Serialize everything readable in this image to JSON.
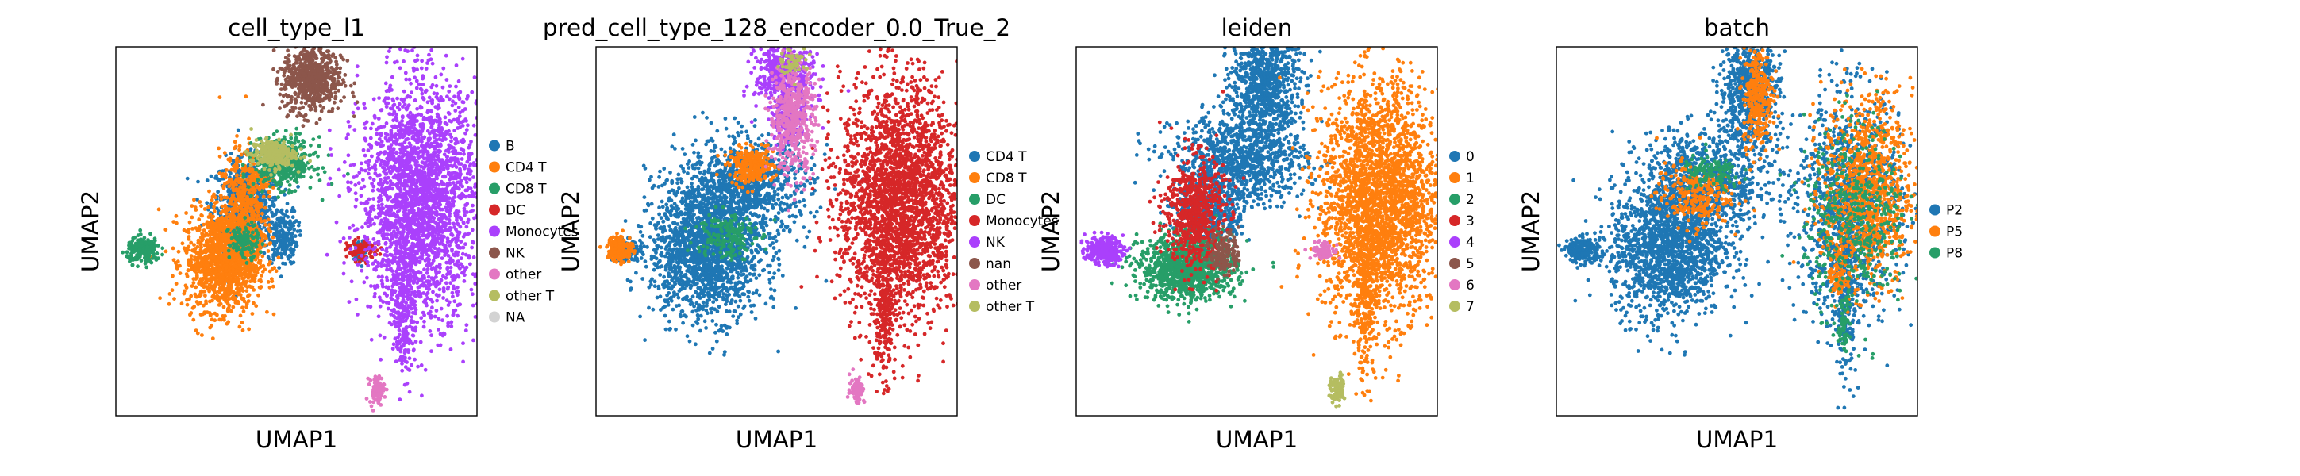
{
  "chart_data": [
    {
      "type": "scatter",
      "title": "cell_type_l1",
      "xlabel": "UMAP1",
      "ylabel": "UMAP2",
      "grid": false,
      "ticks": false,
      "legend_placement": "right-outside",
      "legend": [
        {
          "label": "B",
          "color": "#1f77b4"
        },
        {
          "label": "CD4 T",
          "color": "#ff7f0e"
        },
        {
          "label": "CD8 T",
          "color": "#279e68"
        },
        {
          "label": "DC",
          "color": "#d62728"
        },
        {
          "label": "Monocytes",
          "color": "#aa40fc"
        },
        {
          "label": "NK",
          "color": "#8c564b"
        },
        {
          "label": "other",
          "color": "#e377c2"
        },
        {
          "label": "other T",
          "color": "#b5bd61"
        },
        {
          "label": "NA",
          "color": "#d3d3d3"
        }
      ],
      "series": [
        {
          "category": 0,
          "regions": [
            [
              -3.0,
              2.0,
              0.9,
              1.3,
              650
            ],
            [
              -1.0,
              0.2,
              0.4,
              0.8,
              200
            ],
            [
              3.2,
              -0.7,
              0.15,
              0.3,
              80
            ]
          ]
        },
        {
          "category": 1,
          "regions": [
            [
              -4.3,
              -1.2,
              1.0,
              1.4,
              1100
            ],
            [
              -3.2,
              1.0,
              0.6,
              2.0,
              650
            ],
            [
              -2.2,
              3.4,
              0.3,
              0.3,
              80
            ]
          ]
        },
        {
          "category": 2,
          "regions": [
            [
              -8.5,
              -0.6,
              0.45,
              0.35,
              220
            ],
            [
              -0.9,
              4.4,
              0.8,
              0.7,
              420
            ],
            [
              -3.1,
              -0.1,
              0.4,
              0.5,
              120
            ]
          ]
        },
        {
          "category": 3,
          "regions": [
            [
              3.3,
              -0.6,
              0.4,
              0.3,
              100
            ]
          ]
        },
        {
          "category": 4,
          "regions": [
            [
              6.4,
              2.3,
              1.6,
              3.3,
              2600
            ],
            [
              5.6,
              -3.2,
              0.3,
              2.3,
              280
            ]
          ]
        },
        {
          "category": 5,
          "regions": [
            [
              0.6,
              9.2,
              0.8,
              1.0,
              650
            ]
          ]
        },
        {
          "category": 6,
          "regions": [
            [
              4.1,
              -8.5,
              0.2,
              0.4,
              90
            ]
          ]
        },
        {
          "category": 7,
          "regions": [
            [
              -1.5,
              4.9,
              0.6,
              0.4,
              260
            ]
          ]
        }
      ]
    },
    {
      "type": "scatter",
      "title": "pred_cell_type_128_encoder_0.0_True_2",
      "xlabel": "UMAP1",
      "ylabel": "UMAP2",
      "grid": false,
      "ticks": false,
      "legend_placement": "right-outside",
      "legend": [
        {
          "label": "CD4 T",
          "color": "#1f77b4"
        },
        {
          "label": "CD8 T",
          "color": "#ff7f0e"
        },
        {
          "label": "DC",
          "color": "#279e68"
        },
        {
          "label": "Monocytes",
          "color": "#d62728"
        },
        {
          "label": "NK",
          "color": "#aa40fc"
        },
        {
          "label": "nan",
          "color": "#8c564b"
        },
        {
          "label": "other",
          "color": "#e377c2"
        },
        {
          "label": "other T",
          "color": "#b5bd61"
        }
      ],
      "series": [
        {
          "category": 0,
          "regions": [
            [
              -4.0,
              -0.6,
              1.5,
              1.9,
              1700
            ],
            [
              -2.0,
              3.0,
              1.8,
              1.4,
              900
            ],
            [
              -8.3,
              -0.6,
              0.4,
              0.3,
              120
            ]
          ]
        },
        {
          "category": 1,
          "regions": [
            [
              -8.7,
              -0.5,
              0.35,
              0.4,
              160
            ],
            [
              -1.6,
              4.2,
              0.6,
              0.5,
              250
            ]
          ]
        },
        {
          "category": 2,
          "regions": [
            [
              -3.0,
              0.3,
              0.8,
              0.7,
              180
            ]
          ]
        },
        {
          "category": 3,
          "regions": [
            [
              6.4,
              2.3,
              1.6,
              3.3,
              2600
            ],
            [
              5.6,
              -3.2,
              0.3,
              2.3,
              280
            ]
          ]
        },
        {
          "category": 4,
          "regions": [
            [
              0.2,
              9.4,
              0.8,
              1.0,
              450
            ],
            [
              0.4,
              6.8,
              0.5,
              0.6,
              150
            ]
          ]
        },
        {
          "category": 6,
          "regions": [
            [
              0.6,
              7.0,
              0.6,
              1.6,
              500
            ],
            [
              4.1,
              -8.5,
              0.2,
              0.4,
              90
            ]
          ]
        },
        {
          "category": 7,
          "regions": [
            [
              0.7,
              10.2,
              0.4,
              0.4,
              60
            ]
          ]
        }
      ]
    },
    {
      "type": "scatter",
      "title": "leiden",
      "xlabel": "UMAP1",
      "ylabel": "UMAP2",
      "grid": false,
      "ticks": false,
      "legend_placement": "right-outside",
      "legend": [
        {
          "label": "0",
          "color": "#1f77b4"
        },
        {
          "label": "1",
          "color": "#ff7f0e"
        },
        {
          "label": "2",
          "color": "#279e68"
        },
        {
          "label": "3",
          "color": "#d62728"
        },
        {
          "label": "4",
          "color": "#aa40fc"
        },
        {
          "label": "5",
          "color": "#8c564b"
        },
        {
          "label": "6",
          "color": "#e377c2"
        },
        {
          "label": "7",
          "color": "#b5bd61"
        }
      ],
      "series": [
        {
          "category": 0,
          "regions": [
            [
              -1.2,
              4.5,
              1.8,
              1.3,
              1000
            ],
            [
              0.2,
              8.8,
              0.9,
              1.6,
              800
            ],
            [
              -2.8,
              1.4,
              0.9,
              0.8,
              350
            ]
          ]
        },
        {
          "category": 1,
          "regions": [
            [
              6.4,
              2.3,
              1.6,
              3.3,
              2600
            ],
            [
              5.6,
              -3.2,
              0.3,
              2.3,
              280
            ]
          ]
        },
        {
          "category": 2,
          "regions": [
            [
              -4.0,
              -1.6,
              1.3,
              0.9,
              1100
            ]
          ]
        },
        {
          "category": 3,
          "regions": [
            [
              -3.6,
              1.6,
              0.8,
              1.6,
              650
            ]
          ]
        },
        {
          "category": 4,
          "regions": [
            [
              -8.5,
              -0.6,
              0.5,
              0.4,
              260
            ]
          ]
        },
        {
          "category": 5,
          "regions": [
            [
              -2.0,
              -0.7,
              0.4,
              0.6,
              160
            ]
          ]
        },
        {
          "category": 6,
          "regions": [
            [
              3.4,
              -0.6,
              0.35,
              0.25,
              80
            ]
          ]
        },
        {
          "category": 7,
          "regions": [
            [
              4.1,
              -8.5,
              0.2,
              0.4,
              90
            ]
          ]
        }
      ]
    },
    {
      "type": "scatter",
      "title": "batch",
      "xlabel": "UMAP1",
      "ylabel": "UMAP2",
      "grid": false,
      "ticks": false,
      "legend_placement": "right-outside",
      "legend": [
        {
          "label": "P2",
          "color": "#1f77b4"
        },
        {
          "label": "P5",
          "color": "#ff7f0e"
        },
        {
          "label": "P8",
          "color": "#279e68"
        }
      ],
      "series": [
        {
          "category": 0,
          "regions": [
            [
              -4.0,
              -0.6,
              1.5,
              1.9,
              1500
            ],
            [
              -2.0,
              3.2,
              1.8,
              1.5,
              900
            ],
            [
              0.4,
              8.6,
              0.8,
              1.6,
              650
            ],
            [
              -8.5,
              -0.6,
              0.45,
              0.35,
              240
            ],
            [
              5.8,
              1.8,
              1.4,
              3.2,
              1100
            ],
            [
              5.6,
              -3.2,
              0.3,
              2.3,
              220
            ]
          ]
        },
        {
          "category": 1,
          "regions": [
            [
              6.8,
              2.8,
              1.2,
              2.7,
              1000
            ],
            [
              0.9,
              8.2,
              0.4,
              1.4,
              300
            ],
            [
              -2.6,
              2.6,
              1.0,
              0.9,
              250
            ],
            [
              5.2,
              -2.0,
              0.25,
              0.8,
              80
            ]
          ]
        },
        {
          "category": 2,
          "regions": [
            [
              6.2,
              1.4,
              1.4,
              2.6,
              450
            ],
            [
              -1.6,
              3.8,
              0.8,
              0.5,
              120
            ],
            [
              5.5,
              -4.5,
              0.2,
              0.8,
              60
            ]
          ]
        }
      ]
    }
  ]
}
